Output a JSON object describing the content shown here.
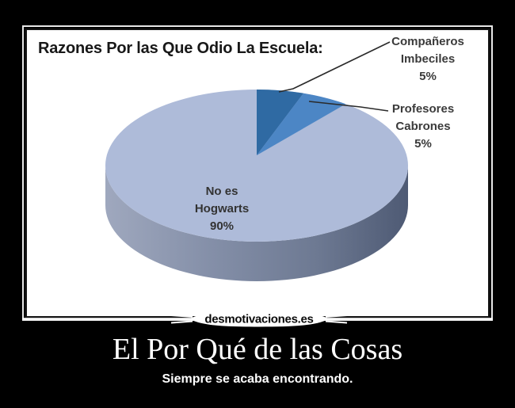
{
  "chart_data": {
    "type": "pie",
    "title": "Razones Por las Que Odio La Escuela:",
    "start_angle_deg": 0,
    "style": "3d-pie",
    "legend_position": "callout-labels",
    "slices": [
      {
        "label": "Compañeros Imbeciles",
        "value": 5,
        "color": "#2f6aa3"
      },
      {
        "label": "Profesores Cabrones",
        "value": 5,
        "color": "#4c86c5"
      },
      {
        "label": "No es Hogwarts",
        "value": 90,
        "color": "#aebbd9"
      }
    ],
    "labels": {
      "companeros": {
        "line1": "Compañeros",
        "line2": "Imbeciles",
        "pct": "5%"
      },
      "profesores": {
        "line1": "Profesores",
        "line2": "Cabrones",
        "pct": "5%"
      },
      "hogwarts": {
        "line1": "No es",
        "line2": "Hogwarts",
        "pct": "90%"
      }
    }
  },
  "watermark": {
    "text": "desmotivaciones.es"
  },
  "caption": {
    "title": "El Por Qué de las Cosas",
    "subtitle": "Siempre se acaba encontrando."
  },
  "colors": {
    "page_background": "#000000",
    "frame_border": "#e8e8e8",
    "image_background": "#ffffff",
    "leader_line": "#2a2a2a",
    "side_gradient": [
      "#9fa8be",
      "#848fa8",
      "#6d7992",
      "#4e5a74"
    ],
    "watermark_text": "#0a0a0a",
    "caption_text": "#ffffff"
  }
}
